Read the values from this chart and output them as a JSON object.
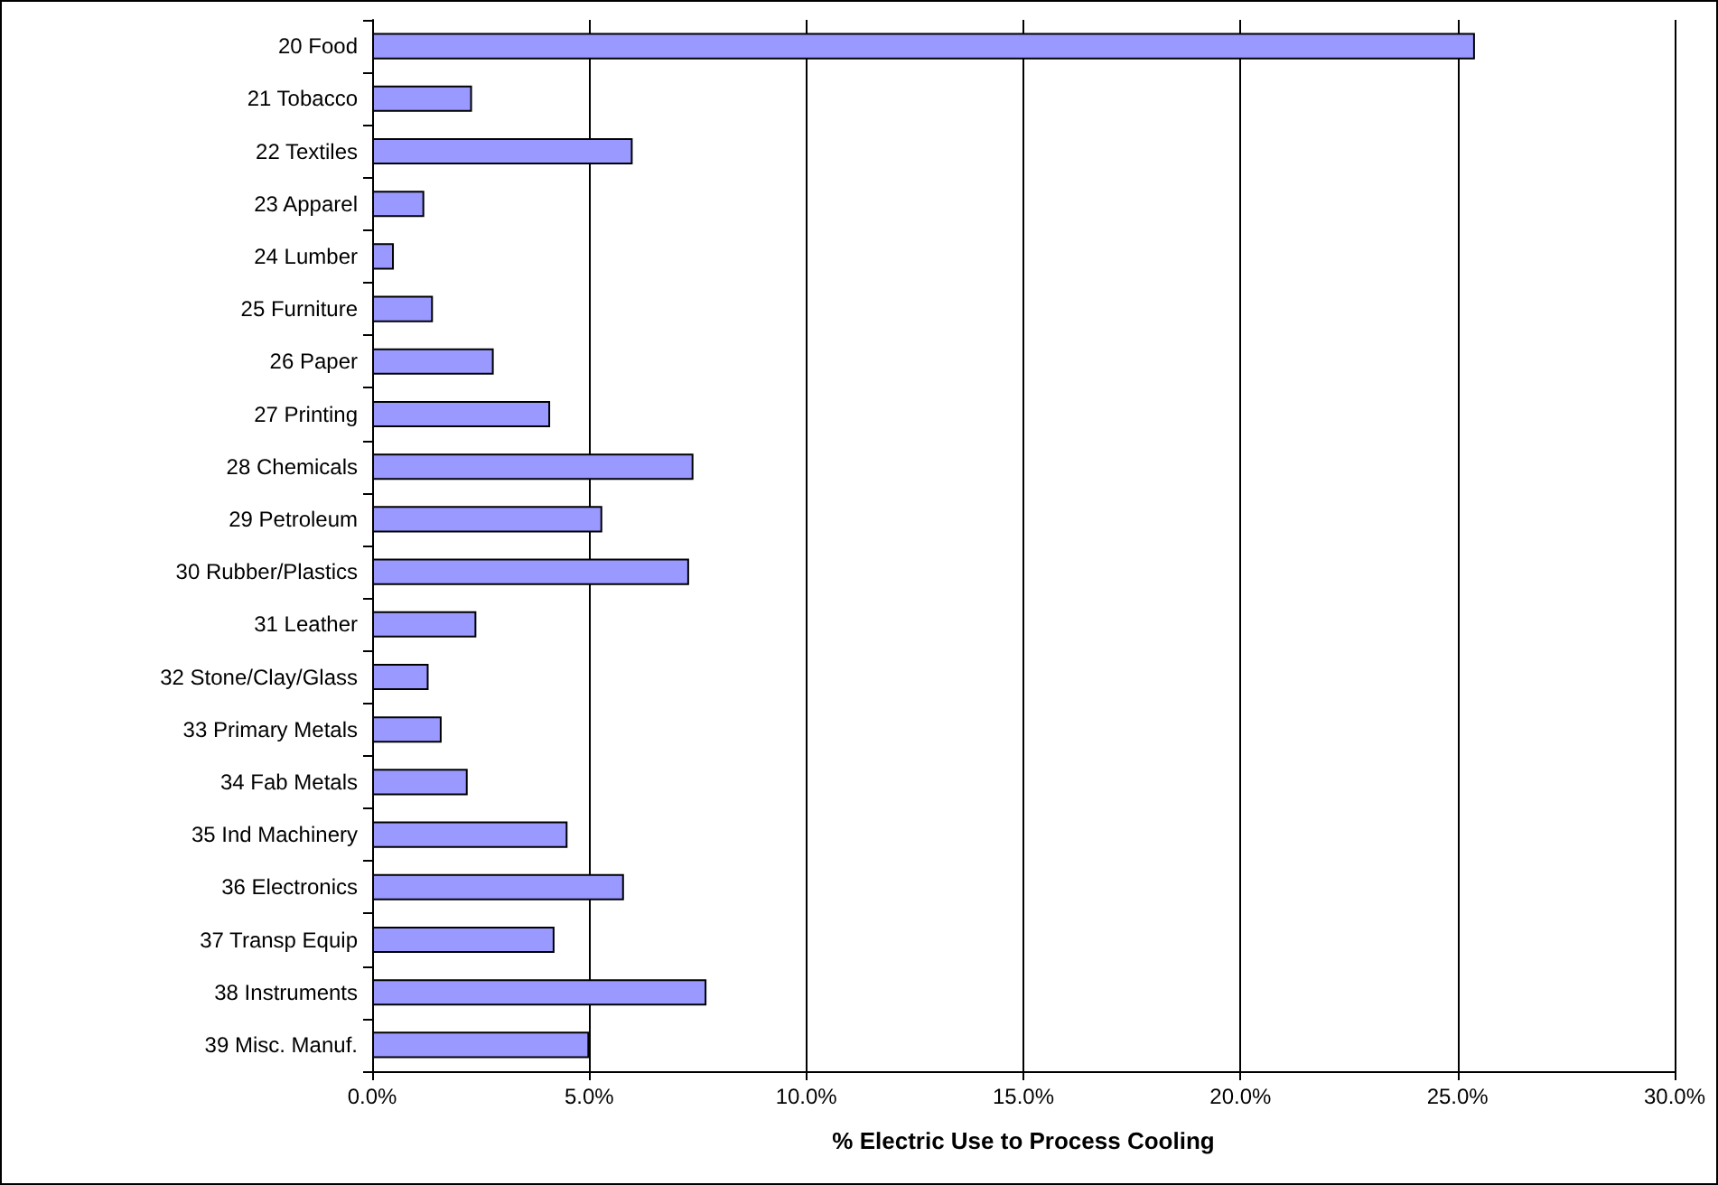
{
  "chart_data": {
    "type": "bar",
    "orientation": "horizontal",
    "xlabel": "% Electric Use to Process Cooling",
    "categories": [
      "20 Food",
      "21 Tobacco",
      "22 Textiles",
      "23 Apparel",
      "24 Lumber",
      "25 Furniture",
      "26 Paper",
      "27 Printing",
      "28 Chemicals",
      "29 Petroleum",
      "30 Rubber/Plastics",
      "31 Leather",
      "32 Stone/Clay/Glass",
      "33 Primary Metals",
      "34 Fab Metals",
      "35 Ind Machinery",
      "36 Electronics",
      "37 Transp Equip",
      "38 Instruments",
      "39 Misc. Manuf."
    ],
    "values": [
      25.4,
      2.3,
      6.0,
      1.2,
      0.5,
      1.4,
      2.8,
      4.1,
      7.4,
      5.3,
      7.3,
      2.4,
      1.3,
      1.6,
      2.2,
      4.5,
      5.8,
      4.2,
      7.7,
      5.0
    ],
    "color": "#9999ff",
    "xlim": [
      0,
      30
    ],
    "xticks": [
      {
        "value": 0,
        "label": "0.0%"
      },
      {
        "value": 5,
        "label": "5.0%"
      },
      {
        "value": 10,
        "label": "10.0%"
      },
      {
        "value": 15,
        "label": "15.0%"
      },
      {
        "value": 20,
        "label": "20.0%"
      },
      {
        "value": 25,
        "label": "25.0%"
      },
      {
        "value": 30,
        "label": "30.0%"
      }
    ],
    "grid": "x"
  }
}
